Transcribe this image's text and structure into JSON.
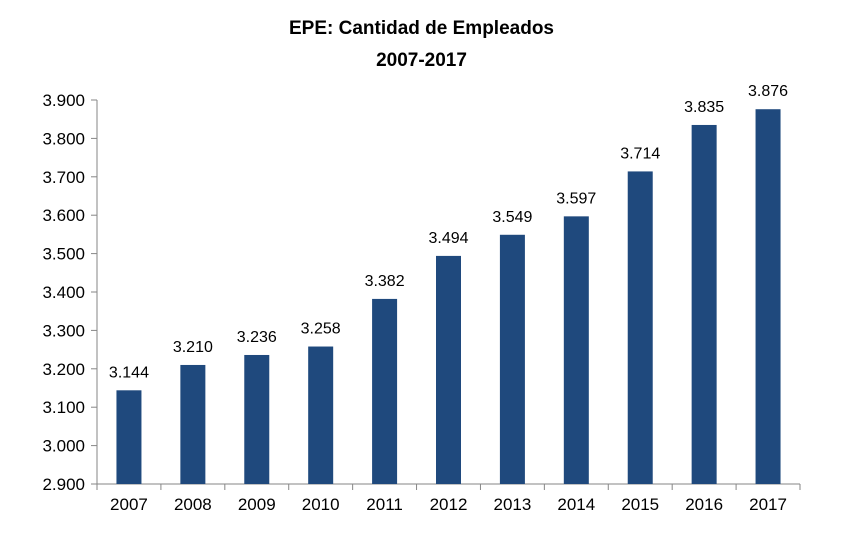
{
  "chart_data": {
    "type": "bar",
    "title": "EPE: Cantidad de Empleados",
    "subtitle": "2007-2017",
    "xlabel": "",
    "ylabel": "",
    "categories": [
      "2007",
      "2008",
      "2009",
      "2010",
      "2011",
      "2012",
      "2013",
      "2014",
      "2015",
      "2016",
      "2017"
    ],
    "values": [
      3144,
      3210,
      3236,
      3258,
      3382,
      3494,
      3549,
      3597,
      3714,
      3835,
      3876
    ],
    "value_labels": [
      "3.144",
      "3.210",
      "3.236",
      "3.258",
      "3.382",
      "3.494",
      "3.549",
      "3.597",
      "3.714",
      "3.835",
      "3.876"
    ],
    "ylim": [
      2900,
      3900
    ],
    "yticks": [
      2900,
      3000,
      3100,
      3200,
      3300,
      3400,
      3500,
      3600,
      3700,
      3800,
      3900
    ],
    "ytick_labels": [
      "2.900",
      "3.000",
      "3.100",
      "3.200",
      "3.300",
      "3.400",
      "3.500",
      "3.600",
      "3.700",
      "3.800",
      "3.900"
    ],
    "grid": false,
    "legend": "none",
    "colors": {
      "bar": "#1F497D",
      "axis": "#868686",
      "text": "#000000"
    }
  }
}
